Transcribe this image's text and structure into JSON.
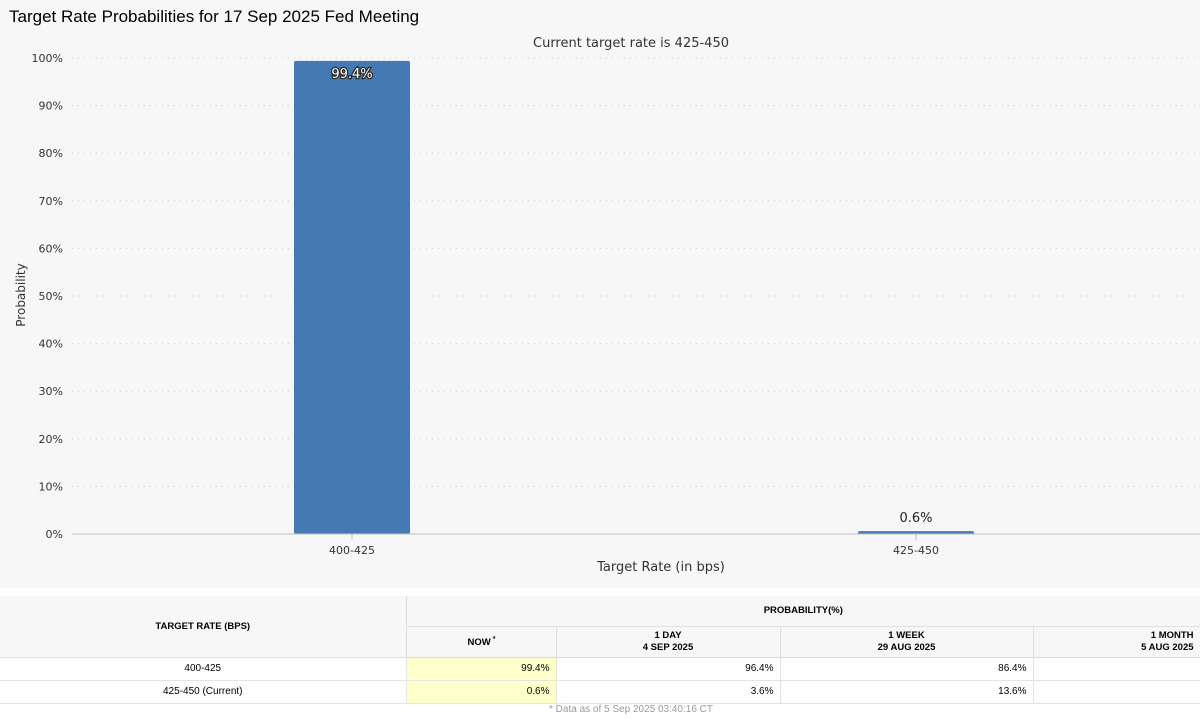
{
  "title": "Target Rate Probabilities for 17 Sep 2025 Fed Meeting",
  "chart_data": {
    "type": "bar",
    "subtitle": "Current target rate is 425-450",
    "categories": [
      "400-425",
      "425-450"
    ],
    "values": [
      99.4,
      0.6
    ],
    "data_labels": [
      "99.4%",
      "0.6%"
    ],
    "xlabel": "Target Rate (in bps)",
    "ylabel": "Probability",
    "ylim": [
      0,
      100
    ],
    "yticks": [
      "0%",
      "10%",
      "20%",
      "30%",
      "40%",
      "50%",
      "60%",
      "70%",
      "80%",
      "90%",
      "100%"
    ],
    "grid": true,
    "bar_color": "#4479b4"
  },
  "table": {
    "col_target_header": "TARGET RATE (BPS)",
    "col_prob_header": "PROBABILITY(%)",
    "sub_now": "NOW",
    "sub_now_mark": "*",
    "sub_1day_line1": "1 DAY",
    "sub_1day_line2": "4 SEP 2025",
    "sub_1week_line1": "1 WEEK",
    "sub_1week_line2": "29 AUG 2025",
    "sub_1month_line1": "1 MONTH",
    "sub_1month_line2": "5 AUG 2025",
    "rows": [
      {
        "target": "400-425",
        "now": "99.4%",
        "day1": "96.4%",
        "week1": "86.4%",
        "month1": ""
      },
      {
        "target": "425-450 (Current)",
        "now": "0.6%",
        "day1": "3.6%",
        "week1": "13.6%",
        "month1": ""
      }
    ]
  },
  "footnote": "* Data as of 5 Sep 2025 03:40:16 CT"
}
